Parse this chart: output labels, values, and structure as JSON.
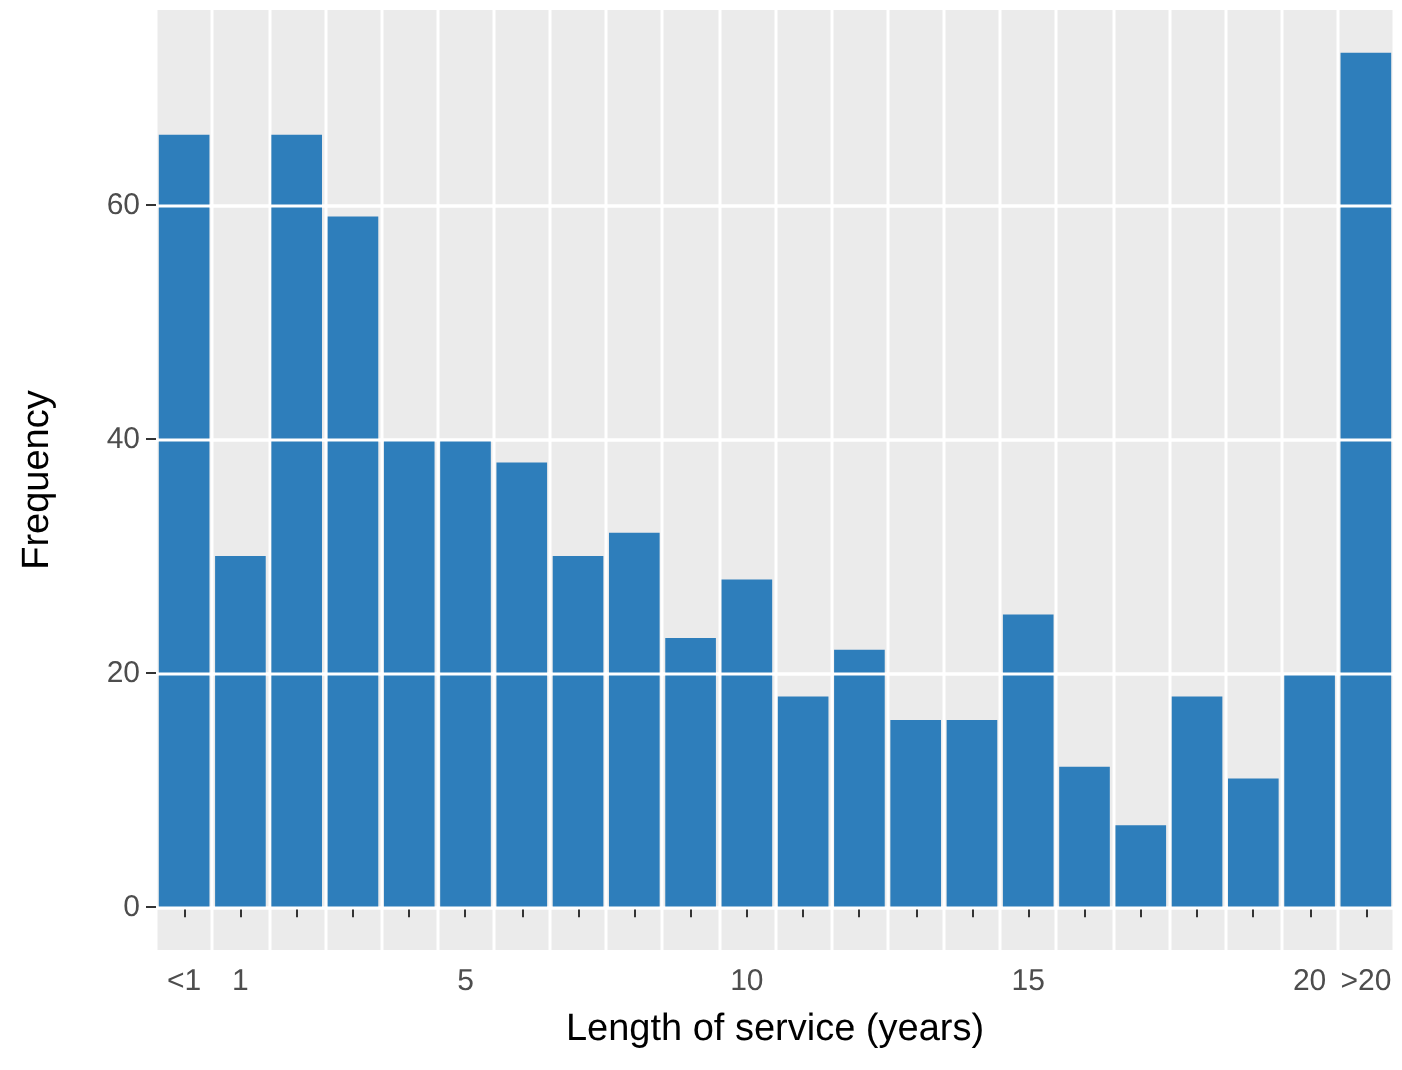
{
  "chart_data": {
    "type": "bar",
    "xlabel": "Length of service (years)",
    "ylabel": "Frequency",
    "categories": [
      "<1",
      "1",
      null,
      null,
      null,
      "5",
      null,
      null,
      null,
      null,
      "10",
      null,
      null,
      null,
      null,
      "15",
      null,
      null,
      null,
      null,
      "20",
      ">20"
    ],
    "values": [
      66,
      30,
      66,
      59,
      40,
      40,
      38,
      30,
      32,
      23,
      28,
      18,
      22,
      16,
      16,
      25,
      12,
      7,
      18,
      11,
      20,
      73
    ],
    "color": "#2e7ebb",
    "ylim": [
      -3.65,
      76.65
    ],
    "yticks": [
      0,
      20,
      40,
      60
    ],
    "grid": true
  }
}
